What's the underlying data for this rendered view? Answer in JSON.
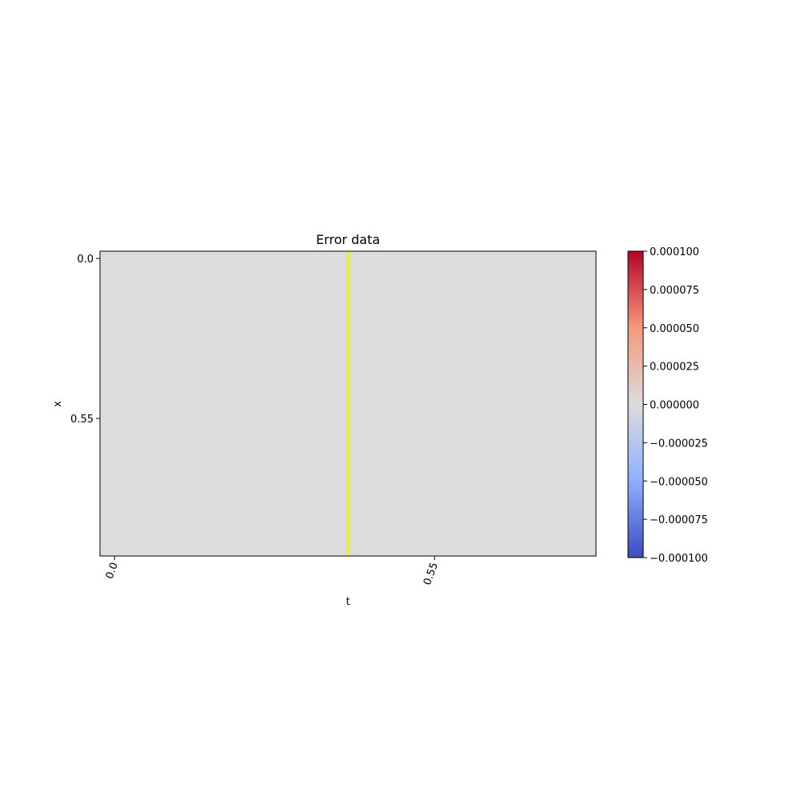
{
  "chart_data": {
    "type": "heatmap",
    "title": "Error data",
    "x_label": "t",
    "y_label": "x",
    "z": [
      [
        0
      ]
    ],
    "xlim": [
      -0.025,
      0.8275
    ],
    "xticks": [
      {
        "value": 0,
        "label": "0.0"
      },
      0.55
    ],
    "ylim": [
      -0.025,
      1.023
    ],
    "y_inverted": true,
    "yticks": [
      {
        "value": 0,
        "label": "0.0"
      },
      0.55
    ],
    "cmap": "coolwarm",
    "clim": [
      -0.0001,
      0.0001
    ],
    "cticks": [
      {
        "value": -0.0001,
        "label": "−0.000100"
      },
      {
        "value": -7.5e-05,
        "label": "−0.000075"
      },
      {
        "value": -5e-05,
        "label": "−0.000050"
      },
      {
        "value": -2.5e-05,
        "label": "−0.000025"
      },
      {
        "value": 0,
        "label": "0.000000"
      },
      {
        "value": 2.5e-05,
        "label": "0.000025"
      },
      {
        "value": 5e-05,
        "label": "0.000050"
      },
      {
        "value": 7.5e-05,
        "label": "0.000075"
      },
      {
        "value": 0.0001,
        "label": "0.000100"
      }
    ],
    "vline": {
      "x": 0.4015,
      "color": "#f0ec34"
    }
  }
}
